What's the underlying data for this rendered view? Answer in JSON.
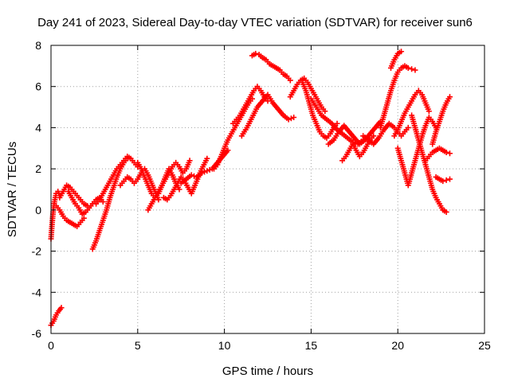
{
  "chart_data": {
    "type": "scatter",
    "title": "Day 241 of 2023, Sidereal Day-to-day VTEC variation (SDTVAR) for receiver sun6",
    "xlabel": "GPS time / hours",
    "ylabel": "SDTVAR / TECUs",
    "xlim": [
      0,
      25
    ],
    "ylim": [
      -6,
      8
    ],
    "x_ticks": [
      0,
      5,
      10,
      15,
      20,
      25
    ],
    "y_ticks": [
      -6,
      -4,
      -2,
      0,
      2,
      4,
      6,
      8
    ],
    "grid": true,
    "marker": "+",
    "color": "#ff0000",
    "series": [
      {
        "x": [
          0.0,
          0.15,
          0.3,
          0.45,
          0.6
        ],
        "y": [
          -5.6,
          -5.4,
          -5.1,
          -4.9,
          -4.75
        ]
      },
      {
        "x": [
          0.0,
          0.05,
          0.1,
          0.15,
          0.2,
          0.25,
          0.3,
          0.4,
          0.5
        ],
        "y": [
          -1.4,
          -0.8,
          -0.3,
          0.1,
          0.4,
          0.6,
          0.8,
          0.9,
          0.7
        ]
      },
      {
        "x": [
          0.3,
          0.5,
          0.7,
          0.9,
          1.1,
          1.3,
          1.5,
          1.7,
          1.9
        ],
        "y": [
          0.2,
          0.0,
          -0.3,
          -0.5,
          -0.6,
          -0.7,
          -0.8,
          -0.6,
          -0.4
        ]
      },
      {
        "x": [
          0.5,
          0.7,
          0.9,
          1.1,
          1.3,
          1.5,
          1.7,
          1.9,
          2.1
        ],
        "y": [
          0.6,
          0.9,
          1.2,
          1.1,
          0.9,
          0.7,
          0.5,
          0.3,
          0.2
        ]
      },
      {
        "x": [
          1.0,
          1.2,
          1.4,
          1.6,
          1.8,
          2.0,
          2.2,
          2.4,
          2.6,
          2.8,
          3.0
        ],
        "y": [
          0.9,
          0.6,
          0.3,
          0.1,
          -0.2,
          -0.1,
          0.1,
          0.3,
          0.5,
          0.6,
          0.4
        ]
      },
      {
        "x": [
          2.4,
          2.6,
          2.8,
          3.0,
          3.2,
          3.4,
          3.6,
          3.8,
          4.0,
          4.2,
          4.4
        ],
        "y": [
          -1.9,
          -1.5,
          -1.0,
          -0.5,
          0.0,
          0.6,
          1.1,
          1.6,
          2.0,
          2.3,
          2.5
        ]
      },
      {
        "x": [
          2.6,
          2.8,
          3.0,
          3.2,
          3.4,
          3.6,
          3.8,
          4.0,
          4.2,
          4.4,
          4.6,
          4.8,
          5.0
        ],
        "y": [
          0.3,
          0.5,
          0.8,
          1.1,
          1.4,
          1.7,
          2.0,
          2.2,
          2.4,
          2.6,
          2.5,
          2.3,
          2.1
        ]
      },
      {
        "x": [
          4.0,
          4.2,
          4.4,
          4.6,
          4.8,
          5.0,
          5.2,
          5.4,
          5.6,
          5.8,
          6.0,
          6.2
        ],
        "y": [
          1.2,
          1.4,
          1.6,
          1.5,
          1.3,
          1.5,
          1.8,
          2.0,
          1.7,
          1.3,
          0.9,
          0.5
        ]
      },
      {
        "x": [
          5.0,
          5.2,
          5.4,
          5.6,
          5.8,
          6.0,
          6.2,
          6.4,
          6.6,
          6.8,
          7.0,
          7.2,
          7.4
        ],
        "y": [
          2.3,
          2.0,
          1.6,
          1.2,
          0.8,
          0.6,
          0.8,
          1.2,
          1.6,
          2.0,
          1.7,
          1.3,
          1.0
        ]
      },
      {
        "x": [
          5.6,
          5.8,
          6.0,
          6.2,
          6.4,
          6.6,
          6.8,
          7.0,
          7.2,
          7.4,
          7.6,
          7.8,
          8.0
        ],
        "y": [
          0.0,
          0.3,
          0.6,
          0.9,
          1.2,
          1.5,
          1.8,
          2.1,
          2.3,
          2.1,
          1.8,
          2.0,
          2.4
        ]
      },
      {
        "x": [
          6.5,
          6.7,
          6.9,
          7.1,
          7.3,
          7.5,
          7.7,
          7.9,
          8.1,
          8.3,
          8.5,
          8.7,
          9.0
        ],
        "y": [
          0.6,
          0.5,
          0.7,
          1.0,
          1.3,
          1.6,
          1.4,
          1.1,
          0.8,
          1.2,
          1.6,
          2.0,
          2.5
        ]
      },
      {
        "x": [
          7.5,
          7.8,
          8.1,
          8.4,
          8.7,
          9.0,
          9.3,
          9.6,
          9.9,
          10.2
        ],
        "y": [
          1.3,
          1.5,
          1.7,
          1.6,
          1.8,
          1.9,
          2.0,
          2.3,
          2.6,
          2.9
        ]
      },
      {
        "x": [
          9.4,
          9.6,
          9.8,
          10.0,
          10.2,
          10.4,
          10.6,
          10.8,
          11.0,
          11.2,
          11.4,
          11.6
        ],
        "y": [
          2.0,
          2.2,
          2.6,
          3.0,
          3.4,
          3.7,
          4.0,
          4.3,
          4.6,
          4.9,
          5.2,
          5.4
        ]
      },
      {
        "x": [
          10.5,
          10.7,
          10.9,
          11.1,
          11.3,
          11.5,
          11.7,
          11.9,
          12.1,
          12.3,
          12.5
        ],
        "y": [
          4.2,
          4.4,
          4.6,
          4.9,
          5.2,
          5.5,
          5.8,
          6.0,
          5.8,
          5.5,
          5.3
        ]
      },
      {
        "x": [
          11.6,
          11.8,
          12.0,
          12.2,
          12.4,
          12.6,
          12.8,
          13.0,
          13.2,
          13.4,
          13.6,
          13.8
        ],
        "y": [
          7.5,
          7.6,
          7.55,
          7.4,
          7.3,
          7.1,
          7.0,
          6.9,
          6.8,
          6.6,
          6.5,
          6.3
        ]
      },
      {
        "x": [
          11.0,
          11.3,
          11.6,
          11.9,
          12.2,
          12.5,
          12.8,
          13.1,
          13.4,
          13.7,
          14.0
        ],
        "y": [
          3.6,
          4.0,
          4.5,
          5.0,
          5.3,
          5.6,
          5.2,
          4.9,
          4.6,
          4.4,
          4.5
        ]
      },
      {
        "x": [
          13.8,
          14.0,
          14.2,
          14.4,
          14.6,
          14.8,
          15.0,
          15.2,
          15.4,
          15.6,
          15.8
        ],
        "y": [
          5.5,
          5.8,
          6.1,
          6.3,
          6.4,
          6.2,
          5.9,
          5.6,
          5.3,
          5.0,
          4.8
        ]
      },
      {
        "x": [
          14.5,
          14.7,
          14.9,
          15.1,
          15.3,
          15.5,
          15.7,
          15.9,
          16.1,
          16.3,
          16.5
        ],
        "y": [
          6.2,
          5.8,
          5.2,
          4.6,
          4.2,
          3.8,
          3.6,
          3.5,
          3.7,
          4.0,
          4.2
        ]
      },
      {
        "x": [
          15.0,
          15.3,
          15.6,
          15.9,
          16.2,
          16.5,
          16.8,
          17.1,
          17.4,
          17.7,
          18.0
        ],
        "y": [
          5.4,
          5.0,
          4.6,
          4.4,
          4.2,
          3.9,
          3.7,
          3.5,
          3.3,
          3.2,
          3.4
        ]
      },
      {
        "x": [
          16.0,
          16.3,
          16.6,
          16.9,
          17.2,
          17.5,
          17.8,
          18.1,
          18.4,
          18.7,
          19.0
        ],
        "y": [
          3.2,
          3.4,
          3.8,
          4.1,
          3.8,
          3.5,
          3.2,
          3.4,
          3.7,
          4.0,
          4.3
        ]
      },
      {
        "x": [
          16.8,
          17.0,
          17.2,
          17.4,
          17.6,
          17.8,
          18.0,
          18.2,
          18.4,
          18.6
        ],
        "y": [
          2.4,
          2.6,
          2.9,
          3.2,
          2.9,
          2.6,
          2.8,
          3.1,
          3.4,
          3.6
        ]
      },
      {
        "x": [
          18.0,
          18.3,
          18.6,
          18.9,
          19.2,
          19.5,
          19.8,
          20.0,
          20.2,
          20.4,
          20.6
        ],
        "y": [
          3.6,
          3.4,
          3.2,
          3.5,
          3.9,
          4.2,
          4.0,
          3.8,
          3.6,
          3.8,
          4.0
        ]
      },
      {
        "x": [
          19.0,
          19.2,
          19.4,
          19.6,
          19.8,
          20.0,
          20.2,
          20.4,
          20.6,
          20.8,
          21.0
        ],
        "y": [
          4.0,
          4.6,
          5.2,
          5.8,
          6.3,
          6.7,
          6.9,
          7.0,
          6.9,
          6.85,
          6.8
        ]
      },
      {
        "x": [
          19.6,
          19.8,
          20.0,
          20.2
        ],
        "y": [
          6.9,
          7.3,
          7.6,
          7.7
        ]
      },
      {
        "x": [
          19.8,
          20.0,
          20.2,
          20.4,
          20.6,
          20.8,
          21.0,
          21.2,
          21.4,
          21.6,
          21.8
        ],
        "y": [
          3.6,
          3.9,
          4.3,
          4.7,
          5.0,
          5.3,
          5.6,
          5.8,
          5.6,
          5.2,
          4.8
        ]
      },
      {
        "x": [
          20.0,
          20.2,
          20.4,
          20.6,
          20.8,
          21.0,
          21.2,
          21.4,
          21.6,
          21.8,
          22.0,
          22.2
        ],
        "y": [
          3.0,
          2.4,
          1.8,
          1.2,
          1.8,
          2.4,
          3.0,
          3.6,
          4.1,
          4.5,
          4.3,
          4.0
        ]
      },
      {
        "x": [
          20.8,
          21.0,
          21.2,
          21.4,
          21.6,
          21.8,
          22.0,
          22.2,
          22.4,
          22.6,
          22.8
        ],
        "y": [
          4.6,
          4.0,
          3.4,
          2.8,
          2.2,
          1.6,
          1.0,
          0.6,
          0.3,
          0.0,
          -0.1
        ]
      },
      {
        "x": [
          21.6,
          21.8,
          22.0,
          22.2,
          22.4,
          22.6,
          22.8,
          23.0
        ],
        "y": [
          2.4,
          2.6,
          2.8,
          2.9,
          3.0,
          2.9,
          2.8,
          2.75
        ]
      },
      {
        "x": [
          22.0,
          22.2,
          22.4,
          22.6,
          22.8,
          23.0
        ],
        "y": [
          3.2,
          3.8,
          4.3,
          4.8,
          5.2,
          5.5
        ]
      },
      {
        "x": [
          22.2,
          22.4,
          22.6,
          22.8,
          23.0
        ],
        "y": [
          1.6,
          1.5,
          1.4,
          1.45,
          1.5
        ]
      }
    ]
  }
}
